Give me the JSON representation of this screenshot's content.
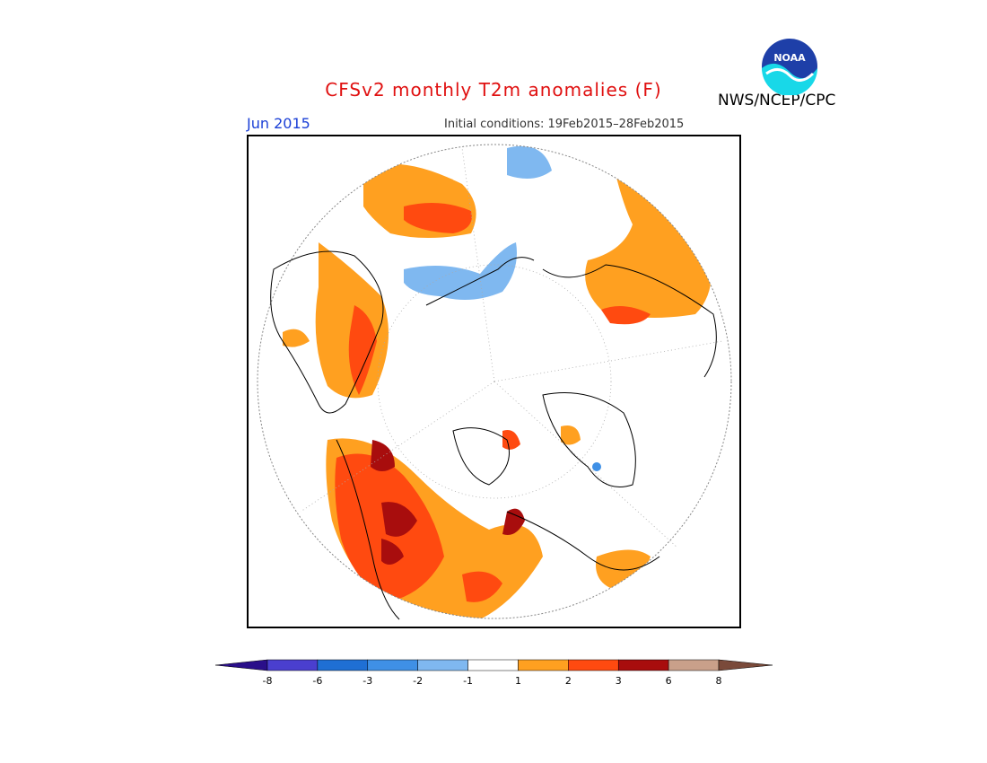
{
  "title": "CFSv2 monthly T2m anomalies (F)",
  "target_month": "Jun 2015",
  "initial_conditions": "Initial conditions: 19Feb2015–28Feb2015",
  "agency": "NWS/NCEP/CPC",
  "logo_text": "NOAA",
  "colorbar": {
    "labels": [
      "-8",
      "-6",
      "-3",
      "-2",
      "-1",
      "1",
      "2",
      "3",
      "6",
      "8"
    ],
    "colors": [
      "#2a0f8a",
      "#4a3fcf",
      "#1f6fd4",
      "#3f90e6",
      "#7fb8f0",
      "#ffffff",
      "#ffa020",
      "#ff4a10",
      "#a80d0d",
      "#c9a08a",
      "#7a4a3a"
    ]
  },
  "colors": {
    "title": "#e01010",
    "month": "#1a3fd6",
    "warm_light": "#ffa020",
    "warm_mid": "#ff4a10",
    "warm_dark": "#a80d0d",
    "cool": "#7fb8f0",
    "cool_mid": "#3f90e6"
  }
}
